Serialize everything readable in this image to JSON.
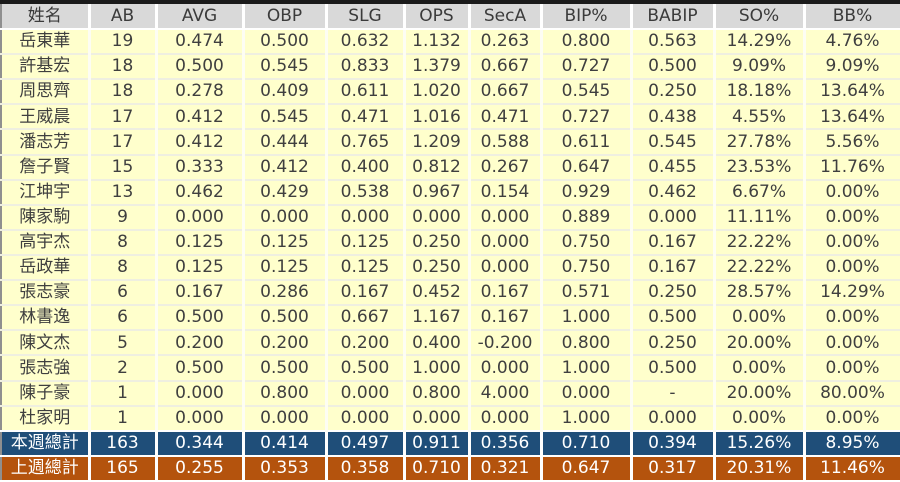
{
  "table": {
    "columns": [
      "姓名",
      "AB",
      "AVG",
      "OBP",
      "SLG",
      "OPS",
      "SecA",
      "BIP%",
      "BABIP",
      "SO%",
      "BB%"
    ],
    "rows": [
      [
        "岳東華",
        "19",
        "0.474",
        "0.500",
        "0.632",
        "1.132",
        "0.263",
        "0.800",
        "0.563",
        "14.29%",
        "4.76%"
      ],
      [
        "許基宏",
        "18",
        "0.500",
        "0.545",
        "0.833",
        "1.379",
        "0.667",
        "0.727",
        "0.500",
        "9.09%",
        "9.09%"
      ],
      [
        "周思齊",
        "18",
        "0.278",
        "0.409",
        "0.611",
        "1.020",
        "0.667",
        "0.545",
        "0.250",
        "18.18%",
        "13.64%"
      ],
      [
        "王威晨",
        "17",
        "0.412",
        "0.545",
        "0.471",
        "1.016",
        "0.471",
        "0.727",
        "0.438",
        "4.55%",
        "13.64%"
      ],
      [
        "潘志芳",
        "17",
        "0.412",
        "0.444",
        "0.765",
        "1.209",
        "0.588",
        "0.611",
        "0.545",
        "27.78%",
        "5.56%"
      ],
      [
        "詹子賢",
        "15",
        "0.333",
        "0.412",
        "0.400",
        "0.812",
        "0.267",
        "0.647",
        "0.455",
        "23.53%",
        "11.76%"
      ],
      [
        "江坤宇",
        "13",
        "0.462",
        "0.429",
        "0.538",
        "0.967",
        "0.154",
        "0.929",
        "0.462",
        "6.67%",
        "0.00%"
      ],
      [
        "陳家駒",
        "9",
        "0.000",
        "0.000",
        "0.000",
        "0.000",
        "0.000",
        "0.889",
        "0.000",
        "11.11%",
        "0.00%"
      ],
      [
        "高宇杰",
        "8",
        "0.125",
        "0.125",
        "0.125",
        "0.250",
        "0.000",
        "0.750",
        "0.167",
        "22.22%",
        "0.00%"
      ],
      [
        "岳政華",
        "8",
        "0.125",
        "0.125",
        "0.125",
        "0.250",
        "0.000",
        "0.750",
        "0.167",
        "22.22%",
        "0.00%"
      ],
      [
        "張志豪",
        "6",
        "0.167",
        "0.286",
        "0.167",
        "0.452",
        "0.167",
        "0.571",
        "0.250",
        "28.57%",
        "14.29%"
      ],
      [
        "林書逸",
        "6",
        "0.500",
        "0.500",
        "0.667",
        "1.167",
        "0.167",
        "1.000",
        "0.500",
        "0.00%",
        "0.00%"
      ],
      [
        "陳文杰",
        "5",
        "0.200",
        "0.200",
        "0.200",
        "0.400",
        "-0.200",
        "0.800",
        "0.250",
        "20.00%",
        "0.00%"
      ],
      [
        "張志強",
        "2",
        "0.500",
        "0.500",
        "0.500",
        "1.000",
        "0.000",
        "1.000",
        "0.500",
        "0.00%",
        "0.00%"
      ],
      [
        "陳子豪",
        "1",
        "0.000",
        "0.800",
        "0.000",
        "0.800",
        "4.000",
        "0.000",
        "-",
        "20.00%",
        "80.00%"
      ],
      [
        "杜家明",
        "1",
        "0.000",
        "0.000",
        "0.000",
        "0.000",
        "0.000",
        "1.000",
        "0.000",
        "0.00%",
        "0.00%"
      ]
    ],
    "summaries": [
      {
        "label": "本週總計",
        "values": [
          "163",
          "0.344",
          "0.414",
          "0.497",
          "0.911",
          "0.356",
          "0.710",
          "0.394",
          "15.26%",
          "8.95%"
        ],
        "bg": "#1F4E79"
      },
      {
        "label": "上週總計",
        "values": [
          "165",
          "0.255",
          "0.353",
          "0.358",
          "0.710",
          "0.321",
          "0.647",
          "0.317",
          "20.31%",
          "11.46%"
        ],
        "bg": "#B4530D"
      }
    ]
  },
  "colors": {
    "header_bg": "#D9D9D9",
    "header_text": "#3B3B3B",
    "row_bg": "#FFFFCC",
    "row_text": "#3F3F3F",
    "grid": "#FFFFFF",
    "this_week_bg": "#1F4E79",
    "last_week_bg": "#B4530D",
    "summary_text": "#FFFFFF",
    "outer_border": "#1A1A1A"
  }
}
